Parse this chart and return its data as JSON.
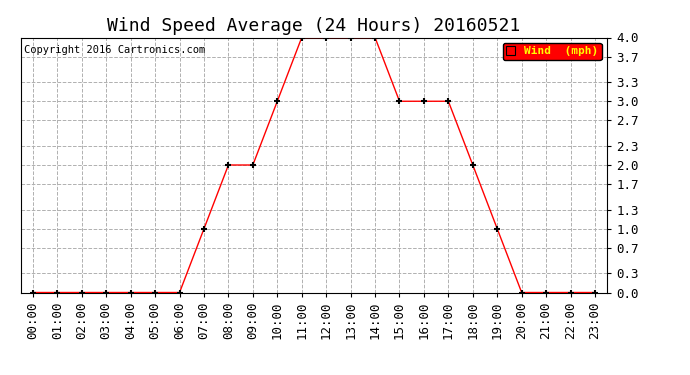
{
  "title": "Wind Speed Average (24 Hours) 20160521",
  "copyright": "Copyright 2016 Cartronics.com",
  "legend_label": "Wind  (mph)",
  "x_labels": [
    "00:00",
    "01:00",
    "02:00",
    "03:00",
    "04:00",
    "05:00",
    "06:00",
    "07:00",
    "08:00",
    "09:00",
    "10:00",
    "11:00",
    "12:00",
    "13:00",
    "14:00",
    "15:00",
    "16:00",
    "17:00",
    "18:00",
    "19:00",
    "20:00",
    "21:00",
    "22:00",
    "23:00"
  ],
  "y_values": [
    0.0,
    0.0,
    0.0,
    0.0,
    0.0,
    0.0,
    0.0,
    1.0,
    2.0,
    2.0,
    3.0,
    4.0,
    4.0,
    4.0,
    4.0,
    3.0,
    3.0,
    3.0,
    2.0,
    1.0,
    0.0,
    0.0,
    0.0,
    0.0
  ],
  "y_ticks": [
    0.0,
    0.3,
    0.7,
    1.0,
    1.3,
    1.7,
    2.0,
    2.3,
    2.7,
    3.0,
    3.3,
    3.7,
    4.0
  ],
  "y_tick_labels": [
    "0.0",
    "0.3",
    "0.7",
    "1.0",
    "1.3",
    "1.7",
    "2.0",
    "2.3",
    "2.7",
    "3.0",
    "3.3",
    "3.7",
    "4.0"
  ],
  "ylim": [
    0.0,
    4.0
  ],
  "line_color": "#ff0000",
  "marker_color": "#000000",
  "grid_color": "#b0b0b0",
  "background_color": "#ffffff",
  "title_fontsize": 13,
  "tick_fontsize": 9,
  "copyright_fontsize": 7.5,
  "legend_bg": "#ff0000",
  "legend_text_color": "#ffff00",
  "legend_fontsize": 8
}
